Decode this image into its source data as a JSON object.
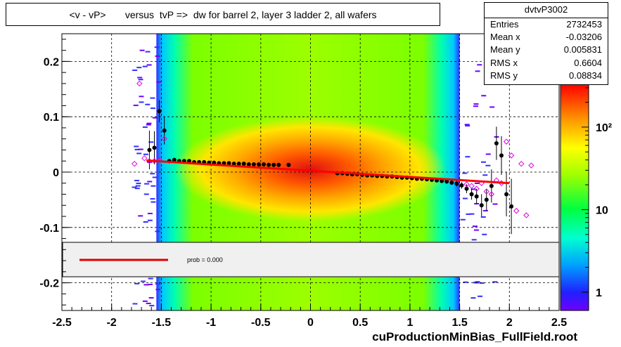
{
  "title": "<v - vP>       versus  tvP =>  dw for barrel 2, layer 3 ladder 2, all wafers",
  "footer": "cuProductionMinBias_FullField.root",
  "stats": {
    "name": "dvtvP3002",
    "rows": [
      {
        "label": "Entries",
        "value": "2732453"
      },
      {
        "label": "Mean x",
        "value": "-0.03206"
      },
      {
        "label": "Mean y",
        "value": "0.005831"
      },
      {
        "label": "RMS x",
        "value": "0.6604"
      },
      {
        "label": "RMS y",
        "value": "0.08834"
      }
    ]
  },
  "legend": {
    "text": "prob = 0.000"
  },
  "chart_data": {
    "type": "heatmap",
    "title": "<v - vP>       versus  tvP =>  dw for barrel 2, layer 3 ladder 2, all wafers",
    "xlabel": "",
    "ylabel": "",
    "xlim": [
      -2.5,
      2.5
    ],
    "ylim": [
      -0.25,
      0.25
    ],
    "x_ticks": [
      "-2.5",
      "-2",
      "-1.5",
      "-1",
      "-0.5",
      "0",
      "0.5",
      "1",
      "1.5",
      "2",
      "2.5"
    ],
    "y_ticks": [
      "-0.2",
      "-0.1",
      "0",
      "0.1",
      "0.2"
    ],
    "grid": true,
    "z_scale": "log",
    "z_ticks": [
      "1",
      "10",
      "10²"
    ],
    "band_x_range": [
      -1.55,
      1.5
    ],
    "profile_points": {
      "x": [
        -1.62,
        -1.57,
        -1.52,
        -1.47,
        -1.42,
        -1.37,
        -1.32,
        -1.27,
        -1.22,
        -1.17,
        -1.12,
        -1.07,
        -1.02,
        -0.97,
        -0.92,
        -0.87,
        -0.82,
        -0.77,
        -0.72,
        -0.67,
        -0.62,
        -0.57,
        -0.52,
        -0.47,
        -0.42,
        -0.37,
        -0.32,
        -0.22,
        0.27,
        0.32,
        0.37,
        0.42,
        0.47,
        0.52,
        0.57,
        0.62,
        0.67,
        0.72,
        0.77,
        0.82,
        0.87,
        0.92,
        0.97,
        1.02,
        1.07,
        1.12,
        1.17,
        1.22,
        1.27,
        1.32,
        1.37,
        1.42,
        1.47,
        1.52,
        1.57,
        1.62,
        1.67,
        1.72,
        1.77,
        1.82,
        1.87,
        1.92,
        1.97,
        2.02
      ],
      "y": [
        0.04,
        0.044,
        0.11,
        0.075,
        0.02,
        0.022,
        0.02,
        0.02,
        0.02,
        0.018,
        0.018,
        0.018,
        0.017,
        0.017,
        0.016,
        0.016,
        0.016,
        0.015,
        0.015,
        0.015,
        0.014,
        0.014,
        0.014,
        0.014,
        0.013,
        0.013,
        0.013,
        0.013,
        -0.002,
        -0.002,
        -0.003,
        -0.004,
        -0.004,
        -0.005,
        -0.006,
        -0.006,
        -0.007,
        -0.007,
        -0.008,
        -0.008,
        -0.009,
        -0.01,
        -0.01,
        -0.011,
        -0.012,
        -0.012,
        -0.013,
        -0.014,
        -0.015,
        -0.016,
        -0.017,
        -0.019,
        -0.021,
        -0.024,
        -0.03,
        -0.04,
        -0.044,
        -0.06,
        -0.05,
        -0.025,
        0.052,
        0.03,
        -0.04,
        -0.062
      ],
      "yerr": [
        0.035,
        0.03,
        0.02,
        0.025,
        0.004,
        0.003,
        0.003,
        0.002,
        0.002,
        0.002,
        0.002,
        0.002,
        0.002,
        0.002,
        0.002,
        0.002,
        0.002,
        0.002,
        0.002,
        0.002,
        0.002,
        0.002,
        0.002,
        0.002,
        0.002,
        0.002,
        0.002,
        0.002,
        0.002,
        0.002,
        0.002,
        0.002,
        0.002,
        0.002,
        0.002,
        0.002,
        0.002,
        0.002,
        0.002,
        0.002,
        0.002,
        0.002,
        0.002,
        0.002,
        0.002,
        0.002,
        0.003,
        0.003,
        0.003,
        0.003,
        0.004,
        0.004,
        0.005,
        0.006,
        0.008,
        0.01,
        0.014,
        0.02,
        0.02,
        0.03,
        0.03,
        0.035,
        0.04,
        0.05
      ]
    },
    "open_markers": {
      "x": [
        -1.77,
        -1.72,
        -1.67,
        -1.62,
        -1.57,
        -1.52,
        -1.47,
        1.57,
        1.62,
        1.67,
        1.72,
        1.77,
        1.82,
        1.87,
        1.92,
        1.97,
        2.02,
        2.07,
        2.12,
        2.17,
        2.22
      ],
      "y": [
        0.015,
        0.16,
        0.025,
        0.02,
        0.02,
        0.022,
        0.06,
        -0.022,
        -0.025,
        -0.03,
        -0.02,
        -0.035,
        -0.04,
        -0.015,
        -0.02,
        0.055,
        0.03,
        -0.07,
        0.015,
        -0.078,
        0.012
      ]
    },
    "fit_line": {
      "x": [
        -1.65,
        2.0
      ],
      "y": [
        0.021,
        -0.02
      ],
      "color": "#ff0000"
    }
  }
}
